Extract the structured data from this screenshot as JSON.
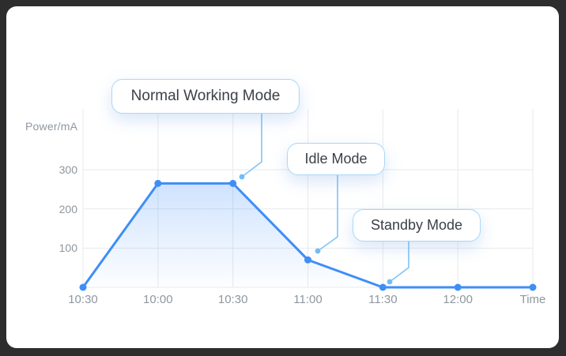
{
  "theme": {
    "frame_background": "#2d2d2d",
    "card_background": "#ffffff",
    "grid_color": "#e7e9ec",
    "axis_text_color": "#8e979f",
    "callout_border_color": "#a9d8f7",
    "callout_text_color": "#3b4046"
  },
  "chart_data": {
    "type": "line",
    "title": "",
    "ylabel": "Power/mA",
    "xlabel": "Time",
    "categories": [
      "10:30",
      "10:00",
      "10:30",
      "11:00",
      "11:30",
      "12:00",
      "Time"
    ],
    "values": [
      0,
      265,
      265,
      70,
      0,
      0,
      0
    ],
    "yticks": [
      100,
      200,
      300
    ],
    "ylim": [
      0,
      455
    ],
    "grid": true,
    "legend": "none",
    "line_color": "#3e8ef7",
    "point_color": "#3e8ef7",
    "area_gradient_top": "rgba(62,142,247,0.28)",
    "area_gradient_bottom": "rgba(62,142,247,0.01)",
    "leader_line_color": "#7fc3f8",
    "leader_dot_color": "#6fbef8",
    "annotations": [
      {
        "label": "Normal Working Mode",
        "points_to_category": "10:30",
        "points_to_value": 265
      },
      {
        "label": "Idle Mode",
        "points_to_category": "11:00",
        "points_to_value": 70
      },
      {
        "label": "Standby Mode",
        "points_to_category": "11:30",
        "points_to_value": 0
      }
    ]
  }
}
